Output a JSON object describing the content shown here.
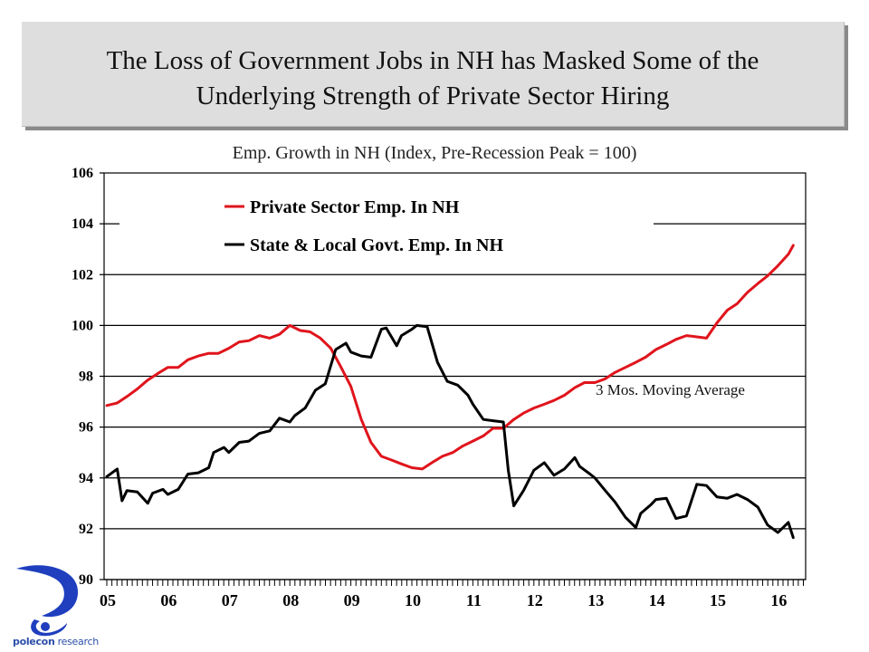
{
  "header": {
    "title_line1": "The Loss of Government  Jobs in NH has Masked Some of the",
    "title_line2": "Underlying  Strength of Private Sector Hiring"
  },
  "logo": {
    "icon": "polecon-swirl-logo",
    "name_bold": "polecon",
    "name_rest": " research",
    "color": "#1f3fbf"
  },
  "chart_data": {
    "type": "line",
    "title": "Emp. Growth in NH (Index, Pre-Recession Peak = 100)",
    "xlabel": "",
    "ylabel": "",
    "ylim": [
      90,
      106
    ],
    "yticks": [
      90,
      92,
      94,
      96,
      98,
      100,
      102,
      104,
      106
    ],
    "xlim": [
      2005.0,
      2016.5
    ],
    "xtick_labels": [
      "05",
      "06",
      "07",
      "08",
      "09",
      "10",
      "11",
      "12",
      "13",
      "14",
      "15",
      "16"
    ],
    "xtick_years": [
      2005,
      2006,
      2007,
      2008,
      2009,
      2010,
      2011,
      2012,
      2013,
      2014,
      2015,
      2016
    ],
    "grid": true,
    "legend_position": "top-left",
    "annotation": "3 Mos. Moving Average",
    "series": [
      {
        "name": "Private Sector Emp. In NH",
        "color": "#e0141c",
        "x": [
          2005.0,
          2005.17,
          2005.33,
          2005.5,
          2005.67,
          2005.83,
          2006.0,
          2006.17,
          2006.33,
          2006.5,
          2006.67,
          2006.83,
          2007.0,
          2007.17,
          2007.33,
          2007.5,
          2007.67,
          2007.83,
          2008.0,
          2008.17,
          2008.33,
          2008.5,
          2008.67,
          2008.83,
          2009.0,
          2009.17,
          2009.33,
          2009.5,
          2009.67,
          2009.83,
          2010.0,
          2010.17,
          2010.33,
          2010.5,
          2010.67,
          2010.83,
          2011.0,
          2011.17,
          2011.33,
          2011.5,
          2011.67,
          2011.83,
          2012.0,
          2012.17,
          2012.33,
          2012.5,
          2012.67,
          2012.83,
          2013.0,
          2013.17,
          2013.33,
          2013.5,
          2013.67,
          2013.83,
          2014.0,
          2014.17,
          2014.33,
          2014.5,
          2014.67,
          2014.83,
          2015.0,
          2015.17,
          2015.33,
          2015.5,
          2015.67,
          2015.83,
          2016.0,
          2016.17,
          2016.25
        ],
        "values": [
          96.85,
          96.95,
          97.2,
          97.5,
          97.85,
          98.1,
          98.35,
          98.35,
          98.65,
          98.8,
          98.9,
          98.9,
          99.1,
          99.35,
          99.4,
          99.6,
          99.5,
          99.65,
          100.0,
          99.8,
          99.75,
          99.5,
          99.1,
          98.4,
          97.6,
          96.3,
          95.4,
          94.85,
          94.7,
          94.55,
          94.4,
          94.35,
          94.6,
          94.85,
          95.0,
          95.25,
          95.45,
          95.65,
          95.95,
          95.95,
          96.3,
          96.55,
          96.75,
          96.9,
          97.05,
          97.25,
          97.55,
          97.75,
          97.75,
          97.9,
          98.15,
          98.35,
          98.55,
          98.75,
          99.05,
          99.25,
          99.45,
          99.6,
          99.55,
          99.5,
          100.1,
          100.6,
          100.85,
          101.3,
          101.65,
          101.95,
          102.35,
          102.8,
          103.15
        ]
      },
      {
        "name": "State & Local Govt. Emp. In NH",
        "color": "#000000",
        "x": [
          2005.0,
          2005.17,
          2005.25,
          2005.33,
          2005.5,
          2005.67,
          2005.75,
          2005.92,
          2006.0,
          2006.17,
          2006.33,
          2006.5,
          2006.67,
          2006.75,
          2006.92,
          2007.0,
          2007.17,
          2007.33,
          2007.5,
          2007.67,
          2007.83,
          2008.0,
          2008.08,
          2008.25,
          2008.42,
          2008.58,
          2008.75,
          2008.92,
          2009.0,
          2009.17,
          2009.33,
          2009.5,
          2009.58,
          2009.75,
          2009.83,
          2010.0,
          2010.08,
          2010.25,
          2010.42,
          2010.58,
          2010.75,
          2010.92,
          2011.0,
          2011.17,
          2011.33,
          2011.5,
          2011.58,
          2011.67,
          2011.83,
          2012.0,
          2012.17,
          2012.33,
          2012.5,
          2012.67,
          2012.75,
          2012.92,
          2013.0,
          2013.17,
          2013.33,
          2013.5,
          2013.67,
          2013.75,
          2013.92,
          2014.0,
          2014.17,
          2014.33,
          2014.5,
          2014.67,
          2014.83,
          2015.0,
          2015.17,
          2015.33,
          2015.5,
          2015.67,
          2015.83,
          2016.0,
          2016.17,
          2016.25
        ],
        "values": [
          94.05,
          94.35,
          93.1,
          93.5,
          93.45,
          93.0,
          93.4,
          93.55,
          93.35,
          93.55,
          94.15,
          94.2,
          94.4,
          95.0,
          95.2,
          95.0,
          95.4,
          95.45,
          95.75,
          95.85,
          96.35,
          96.2,
          96.45,
          96.75,
          97.45,
          97.7,
          99.05,
          99.3,
          98.95,
          98.8,
          98.75,
          99.85,
          99.9,
          99.2,
          99.6,
          99.85,
          100.0,
          99.95,
          98.55,
          97.8,
          97.65,
          97.25,
          96.9,
          96.3,
          96.25,
          96.2,
          94.3,
          92.9,
          93.5,
          94.3,
          94.6,
          94.1,
          94.35,
          94.8,
          94.45,
          94.15,
          94.0,
          93.5,
          93.05,
          92.45,
          92.05,
          92.6,
          92.95,
          93.15,
          93.2,
          92.4,
          92.5,
          93.75,
          93.7,
          93.25,
          93.2,
          93.35,
          93.15,
          92.85,
          92.15,
          91.85,
          92.25,
          91.65
        ]
      }
    ]
  }
}
